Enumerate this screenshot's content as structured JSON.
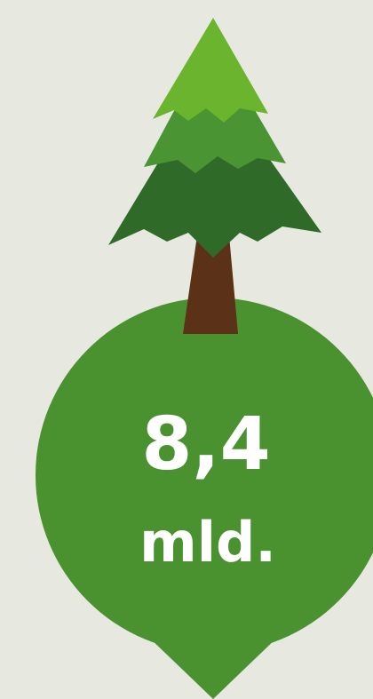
{
  "figure": {
    "value": "8,4",
    "unit": "mld."
  }
}
